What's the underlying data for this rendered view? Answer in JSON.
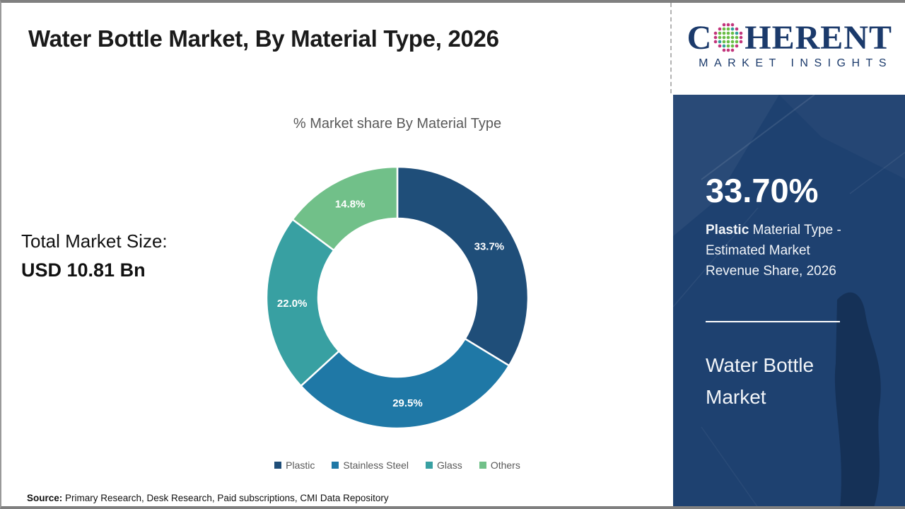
{
  "header": {
    "title": "Water Bottle Market, By Material Type, 2026",
    "logo": {
      "word_start": "C",
      "word_end": "HERENT",
      "subtitle": "MARKET INSIGHTS",
      "navy": "#1b3a6b",
      "globe_green": "#69bd45",
      "globe_teal": "#2f9e99",
      "globe_magenta": "#c2357b"
    }
  },
  "left_stats": {
    "label": "Total Market Size:",
    "value": "USD 10.81 Bn"
  },
  "chart_data": {
    "type": "pie",
    "subtype": "donut",
    "title": "% Market share By Material Type",
    "categories": [
      "Plastic",
      "Stainless Steel",
      "Glass",
      "Others"
    ],
    "values": [
      33.7,
      29.5,
      22.0,
      14.8
    ],
    "labels": [
      "33.7%",
      "29.5%",
      "22.0%",
      "14.8%"
    ],
    "colors": [
      "#1f4e79",
      "#1f78a6",
      "#38a0a2",
      "#71c089"
    ],
    "start_angle_deg": 0,
    "direction": "clockwise",
    "legend_position": "bottom"
  },
  "side_panel": {
    "background": "#1e4170",
    "headline": "33.70%",
    "description_bold": "Plastic",
    "description_rest": " Material Type - Estimated Market Revenue Share, 2026",
    "market_name": "Water Bottle Market"
  },
  "footer": {
    "source_label": "Source:",
    "source_text": " Primary Research, Desk Research, Paid subscriptions, CMI Data Repository"
  }
}
